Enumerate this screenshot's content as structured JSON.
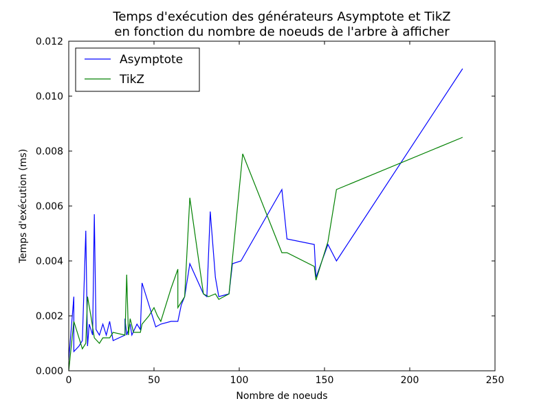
{
  "chart_data": {
    "type": "line",
    "title": [
      "Temps d'exécution des générateurs Asymptote et TikZ",
      "en fonction du nombre de noeuds de l'arbre à afficher"
    ],
    "xlabel": "Nombre de noeuds",
    "ylabel": "Temps d'exécution (ms)",
    "xlim": [
      0,
      250
    ],
    "ylim": [
      0,
      0.012
    ],
    "xticks": [
      "0",
      "50",
      "100",
      "150",
      "200",
      "250"
    ],
    "yticks": [
      "0.000",
      "0.002",
      "0.004",
      "0.006",
      "0.008",
      "0.010",
      "0.012"
    ],
    "grid": false,
    "legend": "top-left",
    "series": [
      {
        "name": "Asymptote",
        "color": "#0000ff",
        "points": [
          [
            0,
            0.0004
          ],
          [
            3,
            0.0027
          ],
          [
            3,
            0.0007
          ],
          [
            6,
            0.0009
          ],
          [
            8,
            0.0011
          ],
          [
            10,
            0.0051
          ],
          [
            11,
            0.0009
          ],
          [
            12,
            0.0017
          ],
          [
            14,
            0.0013
          ],
          [
            15,
            0.0057
          ],
          [
            16,
            0.0015
          ],
          [
            18,
            0.0013
          ],
          [
            20,
            0.0017
          ],
          [
            22,
            0.0013
          ],
          [
            24,
            0.0018
          ],
          [
            26,
            0.0011
          ],
          [
            33,
            0.0013
          ],
          [
            33,
            0.0019
          ],
          [
            34,
            0.0013
          ],
          [
            36,
            0.0017
          ],
          [
            37,
            0.0013
          ],
          [
            40,
            0.0017
          ],
          [
            42,
            0.0015
          ],
          [
            43,
            0.0032
          ],
          [
            46,
            0.0026
          ],
          [
            51,
            0.0016
          ],
          [
            54,
            0.0017
          ],
          [
            60,
            0.0018
          ],
          [
            64,
            0.0018
          ],
          [
            66,
            0.0024
          ],
          [
            68,
            0.0027
          ],
          [
            71,
            0.0039
          ],
          [
            79,
            0.0028
          ],
          [
            81,
            0.0027
          ],
          [
            83,
            0.0058
          ],
          [
            86,
            0.0034
          ],
          [
            88,
            0.0027
          ],
          [
            94,
            0.0028
          ],
          [
            96,
            0.0039
          ],
          [
            101,
            0.004
          ],
          [
            125,
            0.0066
          ],
          [
            128,
            0.0048
          ],
          [
            144,
            0.0046
          ],
          [
            145,
            0.0034
          ],
          [
            152,
            0.0046
          ],
          [
            157,
            0.004
          ],
          [
            231,
            0.011
          ]
        ]
      },
      {
        "name": "TikZ",
        "color": "#008000",
        "points": [
          [
            0,
            0.0
          ],
          [
            3,
            0.0018
          ],
          [
            5,
            0.0014
          ],
          [
            8,
            0.0008
          ],
          [
            10,
            0.001
          ],
          [
            11,
            0.0027
          ],
          [
            13,
            0.002
          ],
          [
            15,
            0.0012
          ],
          [
            18,
            0.001
          ],
          [
            20,
            0.0012
          ],
          [
            24,
            0.0012
          ],
          [
            26,
            0.0014
          ],
          [
            33,
            0.0013
          ],
          [
            34,
            0.0035
          ],
          [
            35,
            0.0013
          ],
          [
            36,
            0.0019
          ],
          [
            38,
            0.0014
          ],
          [
            42,
            0.0014
          ],
          [
            43,
            0.0017
          ],
          [
            47,
            0.002
          ],
          [
            50,
            0.0023
          ],
          [
            52,
            0.002
          ],
          [
            54,
            0.0018
          ],
          [
            60,
            0.003
          ],
          [
            64,
            0.0037
          ],
          [
            64,
            0.0023
          ],
          [
            67,
            0.0026
          ],
          [
            68,
            0.0027
          ],
          [
            71,
            0.0063
          ],
          [
            79,
            0.0028
          ],
          [
            82,
            0.0027
          ],
          [
            86,
            0.0028
          ],
          [
            88,
            0.0026
          ],
          [
            94,
            0.0028
          ],
          [
            102,
            0.0079
          ],
          [
            125,
            0.0043
          ],
          [
            128,
            0.0043
          ],
          [
            144,
            0.0038
          ],
          [
            145,
            0.0033
          ],
          [
            152,
            0.0047
          ],
          [
            157,
            0.0066
          ],
          [
            231,
            0.0085
          ]
        ]
      }
    ]
  }
}
